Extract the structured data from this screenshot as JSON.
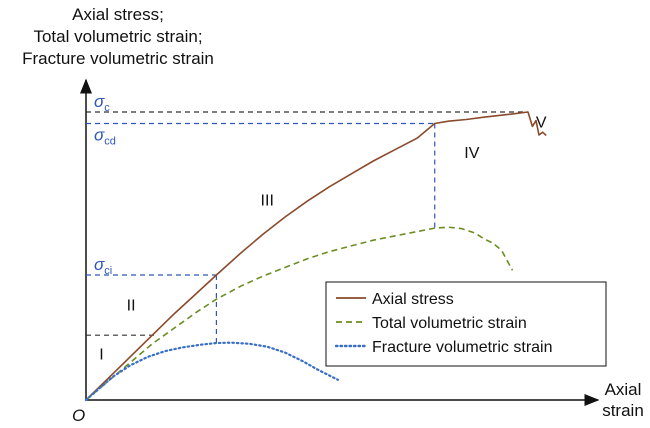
{
  "chart_data": {
    "type": "line",
    "title": "",
    "ylabel_lines": [
      "Axial stress;",
      "Total volumetric strain;",
      "Fracture volumetric strain"
    ],
    "xlabel_lines": [
      "Axial",
      "strain"
    ],
    "origin_label": "O",
    "grid": false,
    "legend_position": "bottom-right",
    "thresholds": [
      {
        "symbol": "σ",
        "subscript": "c",
        "x": 100,
        "y": 100,
        "color": "#333333"
      },
      {
        "symbol": "σ",
        "subscript": "cd",
        "x": 78.9,
        "y": 96.0,
        "color": "#2f57b5"
      },
      {
        "symbol": "σ",
        "subscript": "ci",
        "x": 29.5,
        "y": 43.4,
        "color": "#2f57b5"
      },
      {
        "symbol": "",
        "subscript": "",
        "x": 15.9,
        "y": 22.5,
        "color": "#333333"
      }
    ],
    "stages": [
      {
        "label": "I",
        "x": 3.5,
        "y": 14.0
      },
      {
        "label": "II",
        "x": 10.2,
        "y": 31.0
      },
      {
        "label": "III",
        "x": 41.0,
        "y": 67.5
      },
      {
        "label": "IV",
        "x": 87.3,
        "y": 84.0
      },
      {
        "label": "V",
        "x": 103.0,
        "y": 94.7
      }
    ],
    "series": [
      {
        "name": "Axial stress",
        "color": "#8b4a2b",
        "style": "solid",
        "x": [
          0,
          5,
          10,
          15,
          20,
          25,
          29.5,
          35,
          40,
          45,
          50,
          55,
          60,
          65,
          70,
          75,
          78.9,
          82,
          86,
          90,
          94,
          97,
          100,
          101,
          101.8,
          102.5,
          103.3,
          104
        ],
        "y": [
          0,
          7.5,
          15,
          22.5,
          30,
          37,
          43.4,
          51,
          57.5,
          63.5,
          69,
          74,
          78.5,
          83,
          87,
          91,
          96.0,
          96.8,
          97.4,
          98.2,
          98.9,
          99.4,
          100,
          95,
          97,
          92,
          93,
          92
        ]
      },
      {
        "name": "Total volumetric strain",
        "color": "#6b8e23",
        "style": "dashed",
        "x": [
          0,
          5,
          10,
          15,
          20,
          25,
          29.5,
          35,
          40,
          45,
          50,
          55,
          60,
          65,
          70,
          75,
          78.9,
          82,
          85,
          88,
          90,
          92,
          94,
          96.5
        ],
        "y": [
          0,
          6.5,
          13,
          19.5,
          25,
          30.5,
          35,
          39.5,
          43,
          46,
          49,
          51.5,
          53.5,
          55.5,
          57,
          58.5,
          59.7,
          60,
          59.5,
          58,
          56,
          54.5,
          52,
          45
        ]
      },
      {
        "name": "Fracture volumetric strain",
        "color": "#3a6fc6",
        "style": "dotted",
        "x": [
          0,
          3,
          6,
          10,
          14,
          18,
          22,
          26,
          29.5,
          33,
          37,
          41,
          45,
          49,
          52.5,
          57
        ],
        "y": [
          0,
          4,
          8,
          12,
          15,
          17,
          18.3,
          19.2,
          19.8,
          19.9,
          19.5,
          18.5,
          16.5,
          13.5,
          10.5,
          7
        ]
      }
    ]
  }
}
